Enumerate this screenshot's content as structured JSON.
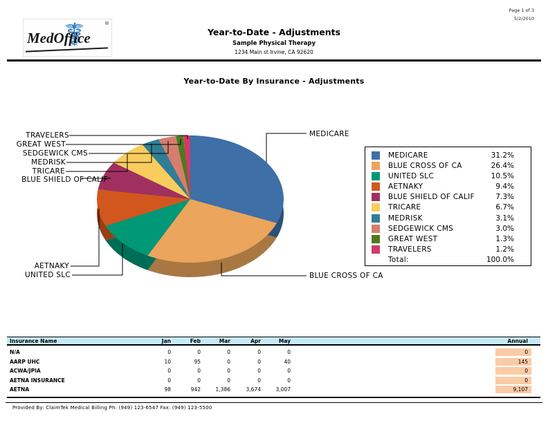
{
  "header": {
    "logo_text": "MedOffice",
    "logo_reg": "®",
    "title": "Year-to-Date - Adjustments",
    "subtitle": "Sample Physical Therapy",
    "address": "1234 Main st Irvine, CA 92620",
    "page_info": "Page 1 of 3",
    "date": "5/2/2010"
  },
  "chart_data": {
    "type": "pie",
    "title": "Year-to-Date By Insurance - Adjustments",
    "unit": "percent",
    "legend_position": "right",
    "slices": [
      {
        "name": "MEDICARE",
        "pct": 31.2,
        "color": "#3E6FA7"
      },
      {
        "name": "BLUE CROSS OF CA",
        "pct": 26.4,
        "color": "#EBA55C"
      },
      {
        "name": "UNITED SLC",
        "pct": 10.5,
        "color": "#009877"
      },
      {
        "name": "AETNAKY",
        "pct": 9.4,
        "color": "#D2571E"
      },
      {
        "name": "BLUE SHIELD OF CALIF",
        "pct": 7.3,
        "color": "#A03060"
      },
      {
        "name": "TRICARE",
        "pct": 6.7,
        "color": "#F8CD5E"
      },
      {
        "name": "MEDRISK",
        "pct": 3.1,
        "color": "#2F7E96"
      },
      {
        "name": "SEDGEWICK CMS",
        "pct": 3.0,
        "color": "#D57E6D"
      },
      {
        "name": "GREAT WEST",
        "pct": 1.3,
        "color": "#4C7B1C"
      },
      {
        "name": "TRAVELERS",
        "pct": 1.2,
        "color": "#D23A67"
      }
    ],
    "legend": {
      "total_label": "Total:",
      "total_value": "100.0%"
    }
  },
  "table": {
    "columns": [
      "Insurance Name",
      "Jan",
      "Feb",
      "Mar",
      "Apr",
      "May",
      "Annual"
    ],
    "rows": [
      {
        "name": "N/A",
        "values": [
          "0",
          "0",
          "0",
          "0",
          "0"
        ],
        "annual": "0"
      },
      {
        "name": "AARP UHC",
        "values": [
          "10",
          "95",
          "0",
          "0",
          "40"
        ],
        "annual": "145"
      },
      {
        "name": "ACWA/JPIA",
        "values": [
          "0",
          "0",
          "0",
          "0",
          "0"
        ],
        "annual": "0"
      },
      {
        "name": "AETNA INSURANCE",
        "values": [
          "0",
          "0",
          "0",
          "0",
          "0"
        ],
        "annual": "0"
      },
      {
        "name": "AETNA",
        "values": [
          "98",
          "942",
          "1,386",
          "3,674",
          "3,007"
        ],
        "annual": "9,107"
      }
    ],
    "header_bg": "#C6E9F8",
    "annual_highlight_color": "#FBCBA6"
  },
  "footer": {
    "text": "Provided By: ClaimTek Medical Billing   Ph: (949) 123-6547 Fax: (949) 123-5500"
  }
}
